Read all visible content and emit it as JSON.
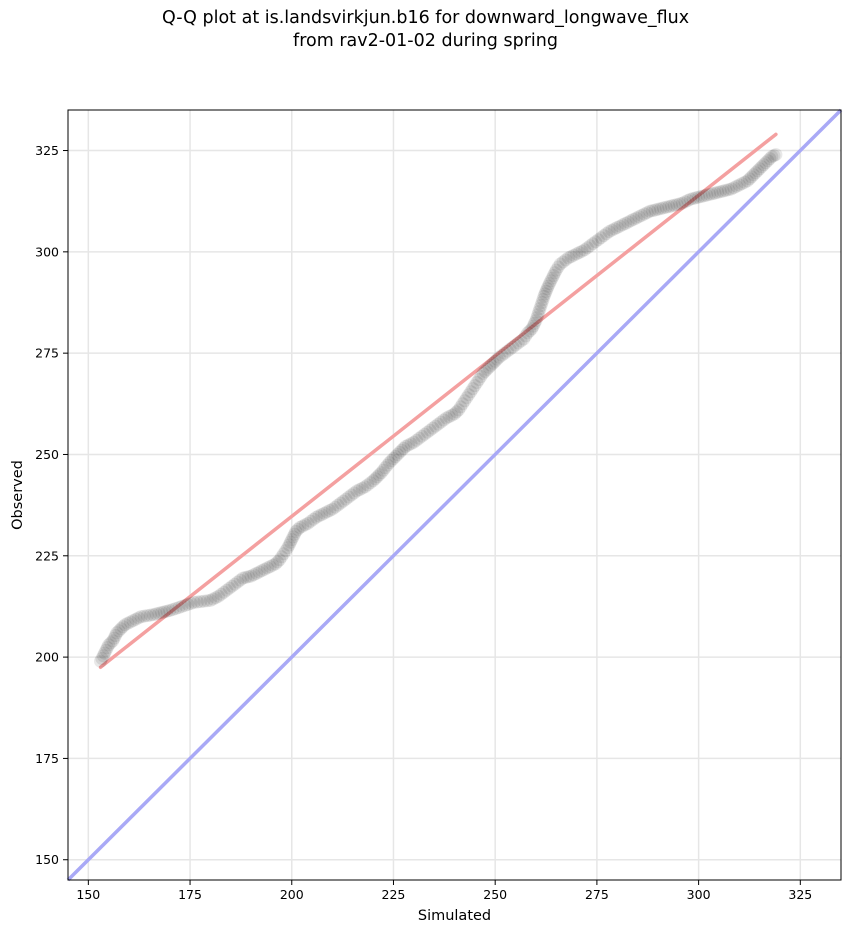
{
  "chart_data": {
    "type": "scatter",
    "title_lines": [
      "Q-Q plot at is.landsvirkjun.b16 for downward_longwave_flux",
      "from rav2-01-02 during spring"
    ],
    "xlabel": "Simulated",
    "ylabel": "Observed",
    "xlim": [
      145,
      335
    ],
    "ylim": [
      145,
      335
    ],
    "xticks": [
      150,
      175,
      200,
      225,
      250,
      275,
      300,
      325
    ],
    "yticks": [
      150,
      175,
      200,
      225,
      250,
      275,
      300,
      325
    ],
    "grid": true,
    "marker_color": "#000000",
    "fit_line_color": "#f4a0a0",
    "identity_line_color": "#a9a9f6",
    "fit_line": {
      "x": [
        153,
        319
      ],
      "y": [
        197.5,
        329
      ]
    },
    "identity_line": {
      "x": [
        145,
        335
      ],
      "y": [
        145,
        335
      ]
    },
    "anchors": [
      [
        153,
        199
      ],
      [
        154,
        201
      ],
      [
        155,
        203
      ],
      [
        156,
        204
      ],
      [
        157,
        206
      ],
      [
        158,
        207
      ],
      [
        159,
        208
      ],
      [
        161,
        209
      ],
      [
        163,
        210
      ],
      [
        166,
        210.5
      ],
      [
        168,
        211
      ],
      [
        170,
        211.5
      ],
      [
        173,
        212.5
      ],
      [
        176,
        213.5
      ],
      [
        180,
        214
      ],
      [
        182,
        215
      ],
      [
        184,
        216.5
      ],
      [
        186,
        218
      ],
      [
        188,
        219.5
      ],
      [
        190,
        220
      ],
      [
        192,
        221
      ],
      [
        194,
        222
      ],
      [
        196,
        223
      ],
      [
        197,
        224
      ],
      [
        198,
        225.5
      ],
      [
        199,
        227
      ],
      [
        200,
        229
      ],
      [
        201,
        231
      ],
      [
        202,
        232
      ],
      [
        204,
        233
      ],
      [
        206,
        234.5
      ],
      [
        208,
        235.5
      ],
      [
        210,
        236.5
      ],
      [
        212,
        238
      ],
      [
        214,
        239.5
      ],
      [
        216,
        241
      ],
      [
        218,
        242
      ],
      [
        220,
        243.5
      ],
      [
        222,
        245.5
      ],
      [
        224,
        248
      ],
      [
        226,
        250
      ],
      [
        228,
        252
      ],
      [
        230,
        253
      ],
      [
        232,
        254.5
      ],
      [
        234,
        256
      ],
      [
        236,
        257.5
      ],
      [
        238,
        259
      ],
      [
        240,
        260
      ],
      [
        241,
        261
      ],
      [
        242,
        262.5
      ],
      [
        243,
        264
      ],
      [
        244,
        265.5
      ],
      [
        245,
        267
      ],
      [
        246,
        268.5
      ],
      [
        247,
        270
      ],
      [
        249,
        272
      ],
      [
        251,
        274
      ],
      [
        253,
        275.5
      ],
      [
        255,
        277
      ],
      [
        257,
        278.5
      ],
      [
        258,
        280
      ],
      [
        259,
        281
      ],
      [
        260,
        283
      ],
      [
        261,
        286
      ],
      [
        262,
        289
      ],
      [
        263,
        291.5
      ],
      [
        264,
        293.5
      ],
      [
        265,
        295.5
      ],
      [
        266,
        297
      ],
      [
        268,
        298.5
      ],
      [
        270,
        299.5
      ],
      [
        272,
        300.5
      ],
      [
        274,
        302
      ],
      [
        276,
        303.5
      ],
      [
        278,
        305
      ],
      [
        280,
        306
      ],
      [
        282,
        307
      ],
      [
        284,
        308
      ],
      [
        286,
        309
      ],
      [
        288,
        310
      ],
      [
        290,
        310.5
      ],
      [
        292,
        311
      ],
      [
        294,
        311.5
      ],
      [
        296,
        312
      ],
      [
        298,
        313
      ],
      [
        300,
        313.5
      ],
      [
        302,
        314
      ],
      [
        304,
        314.5
      ],
      [
        306,
        315
      ],
      [
        308,
        315.5
      ],
      [
        310,
        316.5
      ],
      [
        312,
        317.5
      ],
      [
        313,
        318.5
      ],
      [
        314,
        319.5
      ],
      [
        315,
        320.5
      ],
      [
        316,
        321.5
      ],
      [
        317,
        322.5
      ],
      [
        318,
        323.5
      ],
      [
        319,
        324
      ]
    ]
  }
}
